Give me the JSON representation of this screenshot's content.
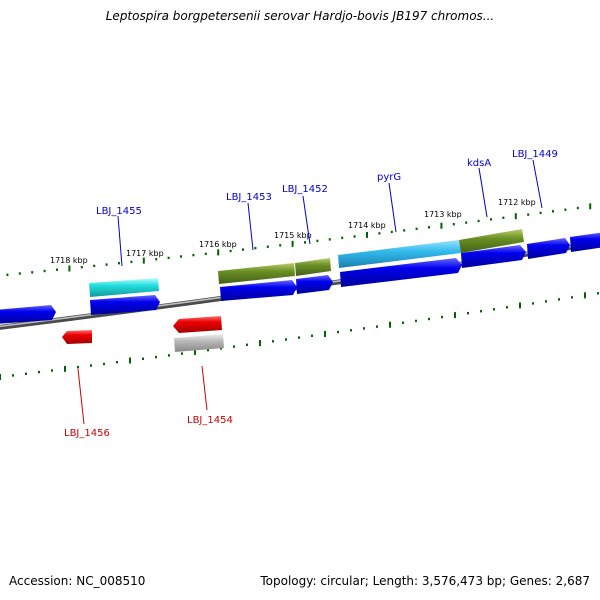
{
  "title": "Leptospira borgpetersenii serovar Hardjo-bovis JB197 chromos...",
  "footer": {
    "accession": "Accession: NC_008510",
    "summary": "Topology: circular; Length: 3,576,473 bp; Genes: 2,687"
  },
  "scale_labels": [
    "1718 kbp",
    "1717 kbp",
    "1716 kbp",
    "1715 kbp",
    "1714 kbp",
    "1713 kbp",
    "1712 kbp"
  ],
  "gene_labels": {
    "forward": [
      "LBJ_1455",
      "LBJ_1453",
      "LBJ_1452",
      "pyrG",
      "kdsA",
      "LBJ_1449"
    ],
    "reverse": [
      "LBJ_1456",
      "LBJ_1454"
    ]
  },
  "colors": {
    "forward_label": "#0000cc",
    "reverse_label": "#cc0000",
    "cds_forward": "#0000ee",
    "cds_reverse": "#ee0000",
    "cyan_feature": "#22dddd",
    "sky_feature": "#33bbee",
    "olive_feature": "#6b8e23",
    "gray_feature": "#a8a8a8",
    "backbone": "#808080",
    "tick": "#006400"
  }
}
